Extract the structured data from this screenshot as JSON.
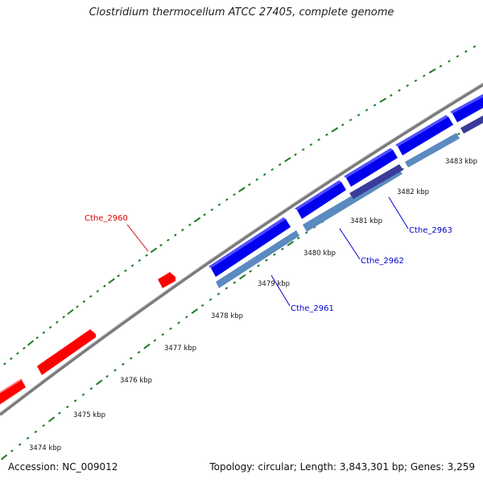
{
  "title": "Clostridium thermocellum ATCC 27405, complete genome",
  "footer": {
    "accession": "Accession: NC_009012",
    "summary": "Topology: circular; Length: 3,843,301 bp; Genes: 3,259"
  },
  "colors": {
    "backbone": "#8c8c8c",
    "ticks": "#1f7a1f",
    "gene_reverse": "#ff0000",
    "gene_forward": "#0000ee",
    "gene_forward_shade": "#5a8ac0",
    "label_red": "#dd0000",
    "label_blue": "#0000cc"
  },
  "scale": {
    "ticks_kbp": [
      {
        "value": 3474,
        "label": "3474 kbp"
      },
      {
        "value": 3475,
        "label": "3475 kbp"
      },
      {
        "value": 3476,
        "label": "3476 kbp"
      },
      {
        "value": 3477,
        "label": "3477 kbp"
      },
      {
        "value": 3478,
        "label": "3478 kbp"
      },
      {
        "value": 3479,
        "label": "3479 kbp"
      },
      {
        "value": 3480,
        "label": "3480 kbp"
      },
      {
        "value": 3481,
        "label": "3481 kbp"
      },
      {
        "value": 3482,
        "label": "3482 kbp"
      },
      {
        "value": 3483,
        "label": "3483 kbp"
      }
    ]
  },
  "gene_labels": [
    {
      "name": "Cthe_2960",
      "color": "label_red"
    },
    {
      "name": "Cthe_2961",
      "color": "label_blue"
    },
    {
      "name": "Cthe_2962",
      "color": "label_blue"
    },
    {
      "name": "Cthe_2963",
      "color": "label_blue"
    }
  ]
}
